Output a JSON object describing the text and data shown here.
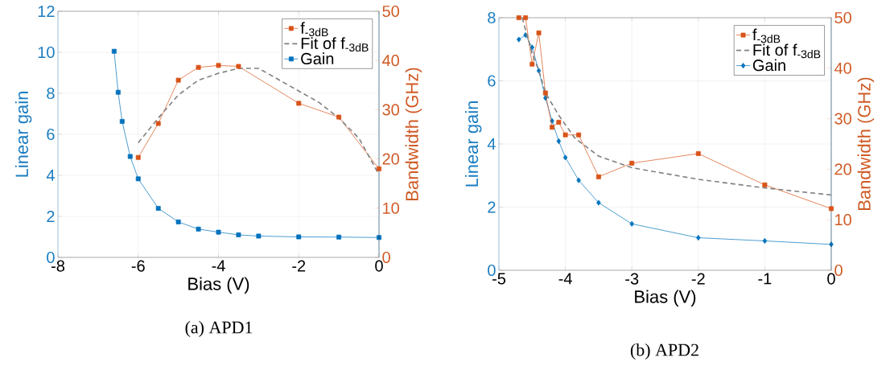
{
  "chart_data": [
    {
      "type": "line",
      "xlabel": "Bias (V)",
      "ylabel": "Linear gain",
      "y2label": "Bandwidth (GHz)",
      "annotations": [
        "(a) APD1"
      ],
      "xlim": [
        -8,
        0
      ],
      "xticks": [
        -8,
        -6,
        -4,
        -2,
        0
      ],
      "ylim": [
        0,
        12
      ],
      "yticks": [
        0,
        2,
        4,
        6,
        8,
        10,
        12
      ],
      "y2lim": [
        0,
        50
      ],
      "y2ticks": [
        0,
        10,
        20,
        30,
        40,
        50
      ],
      "grid": true,
      "legend": "top right",
      "series": [
        {
          "name": "f$_{-3dB}$",
          "color": "#d95319",
          "axis": "y2",
          "marker": "square",
          "line_style": "solid",
          "x": [
            -6,
            -5.5,
            -5,
            -4.5,
            -4,
            -3.5,
            -2,
            -1,
            0
          ],
          "values": [
            20.3,
            27.2,
            36.0,
            38.6,
            39.0,
            38.8,
            31.3,
            28.5,
            18.0
          ]
        },
        {
          "name": "Fit of f$_{-3dB}$",
          "color": "#808080",
          "axis": "y2",
          "marker": "none",
          "line_style": "dashed",
          "x": [
            -6,
            -5.5,
            -5,
            -4.5,
            -4,
            -3.5,
            -3,
            -1.5,
            -1,
            -0.5,
            0
          ],
          "values": [
            23.3,
            28.3,
            33.0,
            36.0,
            37.4,
            38.4,
            38.4,
            31.5,
            28.3,
            24.2,
            16.8
          ]
        },
        {
          "name": "Gain",
          "color": "#0072bd",
          "axis": "y",
          "marker": "square",
          "line_style": "solid",
          "x": [
            -6.6,
            -6.5,
            -6.4,
            -6.2,
            -6,
            -5.5,
            -5,
            -4.5,
            -4,
            -3.5,
            -3,
            -2,
            -1,
            0
          ],
          "values": [
            10.05,
            8.05,
            6.63,
            4.92,
            3.83,
            2.39,
            1.73,
            1.38,
            1.23,
            1.1,
            1.04,
            1.0,
            0.99,
            0.97
          ]
        }
      ]
    },
    {
      "type": "line",
      "xlabel": "Bias (V)",
      "ylabel": "Linear gain",
      "y2label": "Bandwidth (GHz)",
      "annotations": [
        "(b) APD2"
      ],
      "xlim": [
        -5,
        0
      ],
      "xticks": [
        -5,
        -4,
        -3,
        -2,
        -1,
        0
      ],
      "ylim": [
        0,
        8
      ],
      "yticks": [
        0,
        2,
        4,
        6,
        8
      ],
      "y2lim": [
        0,
        50
      ],
      "y2ticks": [
        0,
        10,
        20,
        30,
        40,
        50
      ],
      "grid": true,
      "legend": "top right",
      "series": [
        {
          "name": "f$_{-3dB}$",
          "color": "#d95319",
          "axis": "y2",
          "marker": "square",
          "line_style": "solid",
          "x": [
            -4.7,
            -4.6,
            -4.5,
            -4.4,
            -4.3,
            -4.2,
            -4.1,
            -4,
            -3.8,
            -3.5,
            -3,
            -2,
            -1,
            0
          ],
          "values": [
            50.0,
            50.0,
            40.8,
            47.0,
            35.1,
            28.3,
            29.3,
            26.8,
            26.8,
            18.5,
            21.2,
            23.1,
            16.9,
            12.2
          ]
        },
        {
          "name": "Fit of f$_{-3dB}$",
          "color": "#808080",
          "axis": "y2",
          "marker": "none",
          "line_style": "dashed",
          "x": [
            -4.65,
            -4.5,
            -4.4,
            -4.3,
            -4.1,
            -3.86,
            -3.5,
            -3,
            -2,
            -1,
            0
          ],
          "values": [
            50.0,
            42.9,
            39.6,
            35.1,
            30.7,
            26.2,
            22.6,
            20.3,
            18.0,
            16.3,
            14.9
          ]
        },
        {
          "name": "Gain",
          "color": "#0072bd",
          "axis": "y",
          "marker": "diamond",
          "line_style": "solid",
          "x": [
            -4.7,
            -4.6,
            -4.5,
            -4.4,
            -4.3,
            -4.2,
            -4.1,
            -4,
            -3.8,
            -3.5,
            -3,
            -2,
            -1,
            0
          ],
          "values": [
            7.31,
            7.45,
            7.06,
            6.32,
            5.46,
            4.73,
            4.09,
            3.57,
            2.85,
            2.14,
            1.47,
            1.03,
            0.93,
            0.82
          ]
        }
      ]
    }
  ]
}
